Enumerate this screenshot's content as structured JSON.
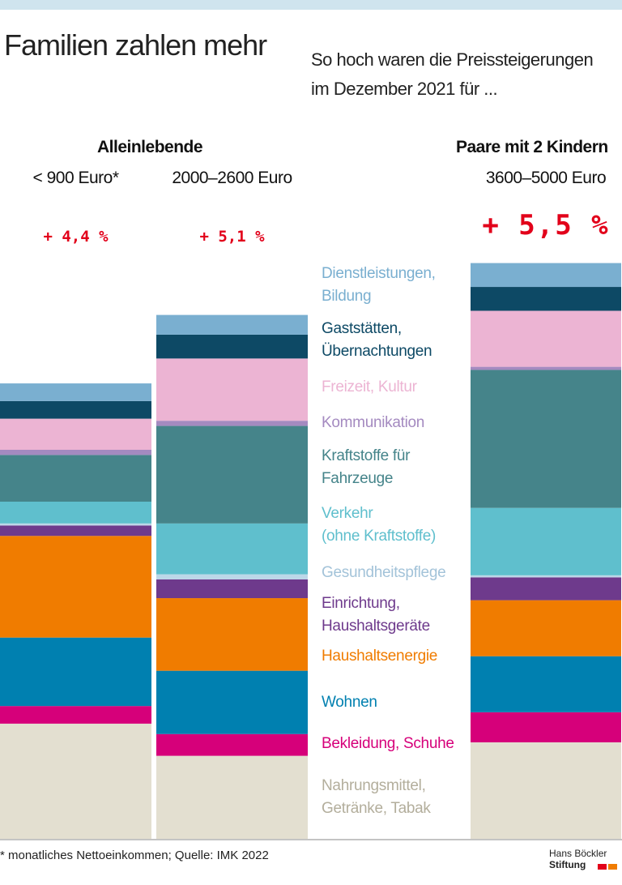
{
  "chart_data": {
    "type": "stacked-bar",
    "title": "Familien zahlen mehr",
    "subtitle": "So hoch waren die Preissteigerungen\nim Dezember 2021 für ...",
    "groups": [
      "Alleinlebende",
      "Paare mit 2 Kindern"
    ],
    "categories": [
      "< 900 Euro*",
      "2000–2600 Euro",
      "3600–5000 Euro"
    ],
    "totals": {
      "values": [
        4.4,
        5.1,
        5.5
      ],
      "value_labels": [
        "+ 4,4 %",
        "+ 5,1 %",
        "+ 5,5 %"
      ],
      "color": "#e2001a"
    },
    "series": [
      {
        "name": "Nahrungsmittel,\nGetränke, Tabak",
        "color": "#e3dfd0",
        "text_color": "#b3ae9c",
        "values": [
          1.11,
          0.8,
          0.93
        ]
      },
      {
        "name": "Bekleidung, Schuhe",
        "color": "#d6007a",
        "values": [
          0.17,
          0.21,
          0.29
        ]
      },
      {
        "name": "Wohnen",
        "color": "#0080b0",
        "values": [
          0.66,
          0.61,
          0.54
        ]
      },
      {
        "name": "Haushaltsenergie",
        "color": "#f07c00",
        "values": [
          0.98,
          0.7,
          0.54
        ]
      },
      {
        "name": "Einrichtung,\nHaushaltsgeräte",
        "color": "#6e3a8c",
        "values": [
          0.1,
          0.18,
          0.22
        ]
      },
      {
        "name": "Gesundheitspflege",
        "color": "#bcd7e8",
        "text_color": "#a3c3d9",
        "values": [
          0.02,
          0.05,
          0.02
        ]
      },
      {
        "name": "Verkehr\n(ohne Kraftstoffe)",
        "color": "#5fbfcd",
        "values": [
          0.21,
          0.49,
          0.65
        ]
      },
      {
        "name": "Kraftstoffe für\nFahrzeuge",
        "color": "#45848a",
        "values": [
          0.45,
          0.94,
          1.33
        ]
      },
      {
        "name": "Kommunikation",
        "color": "#a48ac0",
        "values": [
          0.05,
          0.05,
          0.03
        ]
      },
      {
        "name": "Freizeit, Kultur",
        "color": "#ecb4d3",
        "values": [
          0.3,
          0.6,
          0.54
        ]
      },
      {
        "name": "Gaststätten,\nÜbernachtungen",
        "color": "#0d4965",
        "values": [
          0.17,
          0.23,
          0.23
        ]
      },
      {
        "name": "Dienstleistungen,\nBildung",
        "color": "#7aafd0",
        "values": [
          0.17,
          0.19,
          0.23
        ]
      }
    ],
    "footnote": "* monatliches Nettoeinkommen; Quelle: IMK 2022",
    "logo": [
      "Hans Böckler",
      "Stiftung"
    ]
  }
}
